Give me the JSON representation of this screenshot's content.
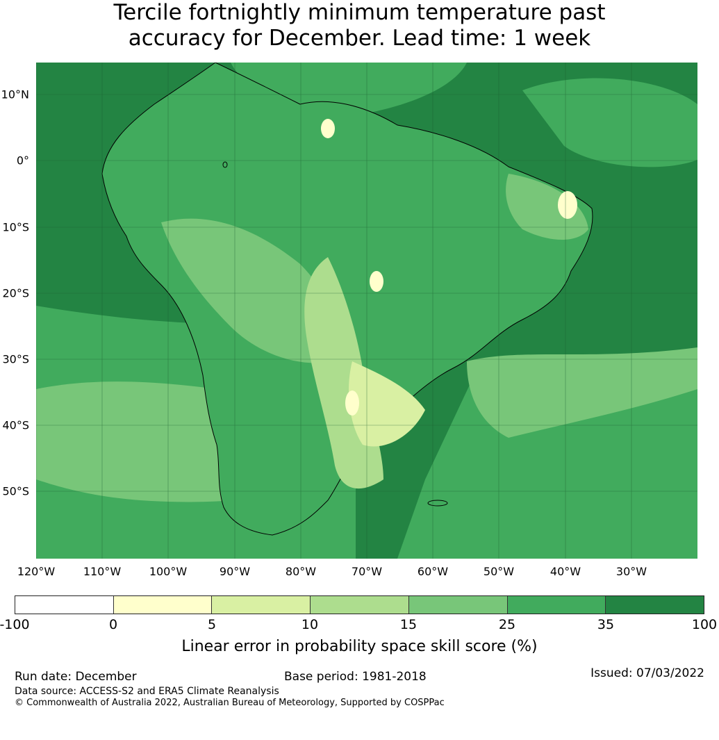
{
  "title": {
    "line1": "Tercile fortnightly minimum temperature past",
    "line2": "accuracy for December. Lead time: 1 week"
  },
  "map": {
    "lat_labels": [
      "10°N",
      "0°",
      "10°S",
      "20°S",
      "30°S",
      "40°S",
      "50°S"
    ],
    "lon_labels": [
      "120°W",
      "110°W",
      "100°W",
      "90°W",
      "80°W",
      "70°W",
      "60°W",
      "50°W",
      "40°W",
      "30°W"
    ]
  },
  "colorbar": {
    "ticks": [
      "-100",
      "0",
      "5",
      "10",
      "15",
      "25",
      "35",
      "100"
    ],
    "colors": [
      "#ffffff",
      "#ffffcc",
      "#d9f0a3",
      "#addd8e",
      "#78c679",
      "#41ab5d",
      "#238443"
    ],
    "label": "Linear error in probability space skill score (%)"
  },
  "footer": {
    "run_date": "Run date: December",
    "base_period": "Base period: 1981-2018",
    "issued": "Issued: 07/03/2022",
    "data_source": "Data source: ACCESS-S2 and ERA5 Climate Reanalysis",
    "copyright": "© Commonwealth of Australia 2022, Australian Bureau of Meteorology, Supported by COSPPac"
  }
}
